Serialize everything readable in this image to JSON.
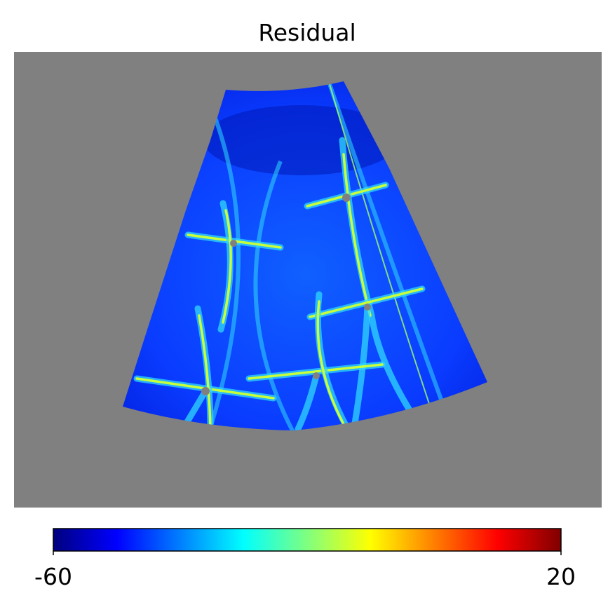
{
  "chart_data": {
    "type": "map",
    "title": "Residual",
    "colormap": "jet",
    "background": "#808080",
    "clim": [
      -60,
      20
    ],
    "cticks": [
      -60,
      20
    ]
  }
}
